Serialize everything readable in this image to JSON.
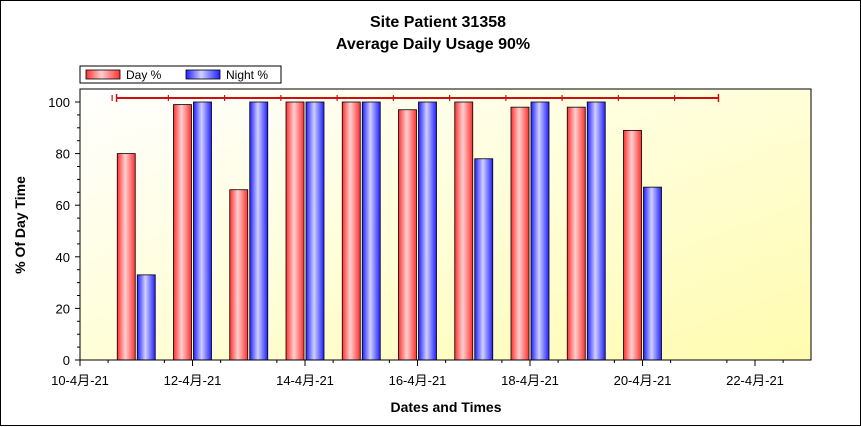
{
  "chart_data": {
    "type": "bar",
    "title": "Site Patient 31358",
    "subtitle": "Average Daily Usage 90%",
    "xlabel": "Dates and Times",
    "ylabel": "% Of Day Time",
    "ylim": [
      0,
      100
    ],
    "yticks": [
      0,
      20,
      40,
      60,
      80,
      100
    ],
    "x_tick_labels": [
      "10-4月-21",
      "12-4月-21",
      "14-4月-21",
      "16-4月-21",
      "18-4月-21",
      "20-4月-21",
      "22-4月-21"
    ],
    "legend_position": "top-left",
    "average_usage_line": 100,
    "series": [
      {
        "name": "Day %",
        "color": "#ff4040",
        "values": [
          80,
          99,
          66,
          100,
          100,
          97,
          100,
          98,
          98,
          89
        ]
      },
      {
        "name": "Night %",
        "color": "#4040ff",
        "values": [
          33,
          100,
          100,
          100,
          100,
          100,
          78,
          100,
          100,
          67
        ]
      }
    ]
  }
}
